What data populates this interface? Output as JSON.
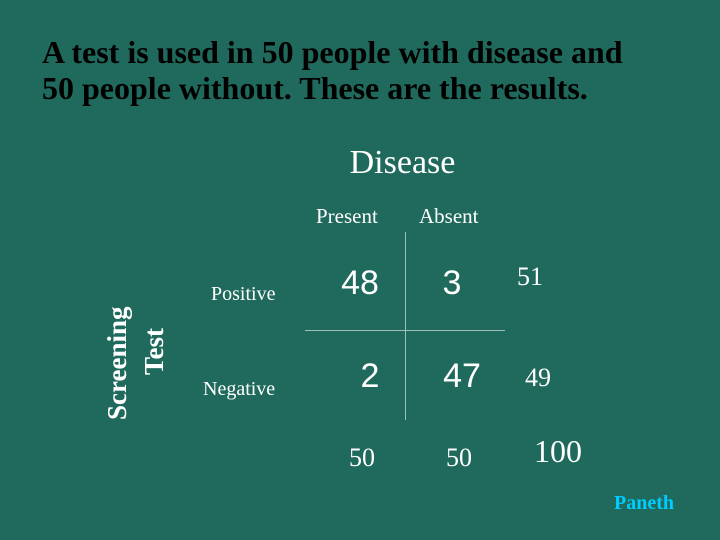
{
  "title": {
    "line1": "A test is used in 50 people with disease and",
    "line2": "50 people without.  These are the results."
  },
  "table": {
    "column_header": "Disease",
    "columns": [
      "Present",
      "Absent"
    ],
    "row_header_line1": "Screening",
    "row_header_line2": "Test",
    "rows": [
      "Positive",
      "Negative"
    ],
    "cells": [
      [
        "48",
        "3"
      ],
      [
        "2",
        "47"
      ]
    ],
    "row_totals": [
      "51",
      "49"
    ],
    "column_totals": [
      "50",
      "50"
    ],
    "grand_total": "100"
  },
  "signature": "Paneth",
  "colors": {
    "background": "#1f6a5c",
    "title_text": "#000000",
    "body_text": "#ffffff",
    "signature_text": "#00ccff"
  }
}
